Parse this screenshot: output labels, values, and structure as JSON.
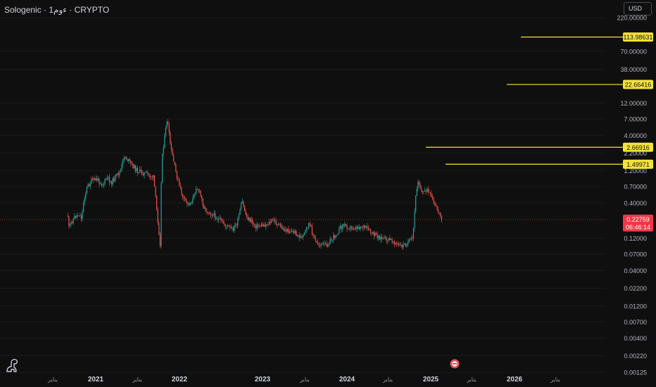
{
  "header": {
    "symbol": "Sologenic · 1ءوم · CRYPTO",
    "currency": "USD"
  },
  "chart_data": {
    "type": "candlestick",
    "scale": "log",
    "x_ticks": [
      "يناير",
      "2021",
      "يناير",
      "2022",
      "2023",
      "يناير",
      "2024",
      "يناير",
      "2025",
      "يناير",
      "2026",
      "يناير"
    ],
    "y_ticks": [
      {
        "label": "220.00000",
        "value": 220
      },
      {
        "label": "70.00000",
        "value": 70
      },
      {
        "label": "38.00000",
        "value": 38
      },
      {
        "label": "12.00000",
        "value": 12
      },
      {
        "label": "7.00000",
        "value": 7
      },
      {
        "label": "4.00000",
        "value": 4
      },
      {
        "label": "2.20000",
        "value": 2.2
      },
      {
        "label": "1.20000",
        "value": 1.2
      },
      {
        "label": "0.70000",
        "value": 0.7
      },
      {
        "label": "0.40000",
        "value": 0.4
      },
      {
        "label": "0.12000",
        "value": 0.12
      },
      {
        "label": "0.07000",
        "value": 0.07
      },
      {
        "label": "0.04000",
        "value": 0.04
      },
      {
        "label": "0.02200",
        "value": 0.022
      },
      {
        "label": "0.01200",
        "value": 0.012
      },
      {
        "label": "0.00700",
        "value": 0.007
      },
      {
        "label": "0.00400",
        "value": 0.004
      },
      {
        "label": "0.00220",
        "value": 0.0022
      },
      {
        "label": "0.00125",
        "value": 0.00125
      }
    ],
    "horizontal_lines": [
      {
        "value": 113.98631,
        "label": "113.98631"
      },
      {
        "value": 22.66416,
        "label": "22.66416"
      },
      {
        "value": 2.66916,
        "label": "2.66916"
      },
      {
        "value": 1.49971,
        "label": "1.49971"
      }
    ],
    "current_price": {
      "value": 0.22759,
      "label": "0.22759",
      "countdown": "06:46:14"
    },
    "price_path": [
      [
        "2020-09-01",
        0.26
      ],
      [
        "2020-09-05",
        0.17
      ],
      [
        "2020-09-15",
        0.2
      ],
      [
        "2020-10-01",
        0.25
      ],
      [
        "2020-10-20",
        0.27
      ],
      [
        "2020-11-01",
        0.24
      ],
      [
        "2020-11-10",
        0.45
      ],
      [
        "2020-11-25",
        0.7
      ],
      [
        "2020-12-15",
        0.85
      ],
      [
        "2021-01-05",
        0.9
      ],
      [
        "2021-02-01",
        0.75
      ],
      [
        "2021-02-20",
        0.95
      ],
      [
        "2021-03-10",
        0.8
      ],
      [
        "2021-04-01",
        1.0
      ],
      [
        "2021-04-20",
        1.2
      ],
      [
        "2021-05-05",
        2.0
      ],
      [
        "2021-06-01",
        1.55
      ],
      [
        "2021-07-01",
        1.2
      ],
      [
        "2021-08-01",
        1.1
      ],
      [
        "2021-09-10",
        0.95
      ],
      [
        "2021-10-10",
        0.09
      ],
      [
        "2021-10-15",
        1.8
      ],
      [
        "2021-11-01",
        4.5
      ],
      [
        "2021-11-08",
        7.0
      ],
      [
        "2021-11-25",
        2.5
      ],
      [
        "2021-12-15",
        1.2
      ],
      [
        "2022-01-01",
        0.7
      ],
      [
        "2022-01-20",
        0.45
      ],
      [
        "2022-02-10",
        0.38
      ],
      [
        "2022-03-01",
        0.45
      ],
      [
        "2022-03-15",
        0.7
      ],
      [
        "2022-04-01",
        0.55
      ],
      [
        "2022-04-20",
        0.33
      ],
      [
        "2022-06-01",
        0.26
      ],
      [
        "2022-07-10",
        0.2
      ],
      [
        "2022-08-20",
        0.16
      ],
      [
        "2022-09-10",
        0.2
      ],
      [
        "2022-10-01",
        0.42
      ],
      [
        "2022-10-20",
        0.25
      ],
      [
        "2022-12-01",
        0.18
      ],
      [
        "2023-01-10",
        0.19
      ],
      [
        "2023-02-15",
        0.22
      ],
      [
        "2023-04-01",
        0.16
      ],
      [
        "2023-05-15",
        0.15
      ],
      [
        "2023-06-20",
        0.12
      ],
      [
        "2023-07-20",
        0.2
      ],
      [
        "2023-08-20",
        0.1
      ],
      [
        "2023-10-01",
        0.095
      ],
      [
        "2023-11-01",
        0.12
      ],
      [
        "2023-12-15",
        0.19
      ],
      [
        "2024-01-20",
        0.17
      ],
      [
        "2024-03-15",
        0.18
      ],
      [
        "2024-04-20",
        0.14
      ],
      [
        "2024-06-01",
        0.12
      ],
      [
        "2024-07-20",
        0.11
      ],
      [
        "2024-08-20",
        0.09
      ],
      [
        "2024-09-20",
        0.1
      ],
      [
        "2024-10-15",
        0.12
      ],
      [
        "2024-10-25",
        0.4
      ],
      [
        "2024-11-05",
        0.9
      ],
      [
        "2024-11-25",
        0.55
      ],
      [
        "2024-12-10",
        0.65
      ],
      [
        "2025-01-01",
        0.5
      ],
      [
        "2025-01-20",
        0.35
      ],
      [
        "2025-02-05",
        0.29
      ],
      [
        "2025-02-20",
        0.22759
      ]
    ],
    "colors": {
      "up": "#26a69a",
      "down": "#ef5350",
      "level_line": "#f4e23b",
      "price_line": "#ef5350",
      "price_tag": "#f23645",
      "grid": "#1a1a1a"
    }
  }
}
